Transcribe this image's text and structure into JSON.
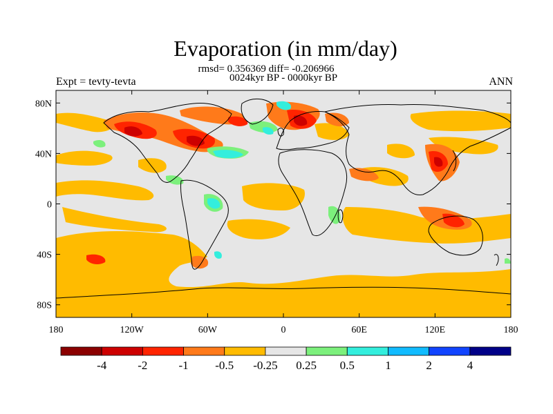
{
  "title": "Evaporation (in mm/day)",
  "stats_line": "rmsd= 0.356369 diff= -0.206966",
  "period_line": "0024kyr BP - 0000kyr BP",
  "left_label": "Expt = tevty-tevta",
  "right_label": "ANN",
  "lat_labels": [
    "80N",
    "40N",
    "0",
    "40S",
    "80S"
  ],
  "lon_labels": [
    "180",
    "120W",
    "60W",
    "0",
    "60E",
    "120E",
    "180"
  ],
  "colorbar": {
    "labels": [
      "-4",
      "-2",
      "-1",
      "-0.5",
      "-0.25",
      "0.25",
      "0.5",
      "1",
      "2",
      "4"
    ],
    "colors": [
      "#8b0000",
      "#cd0000",
      "#ff2400",
      "#ff7a1a",
      "#ffbb00",
      "#e6e6e6",
      "#7cf07c",
      "#33eedd",
      "#11bbff",
      "#1144ff",
      "#000088"
    ]
  }
}
